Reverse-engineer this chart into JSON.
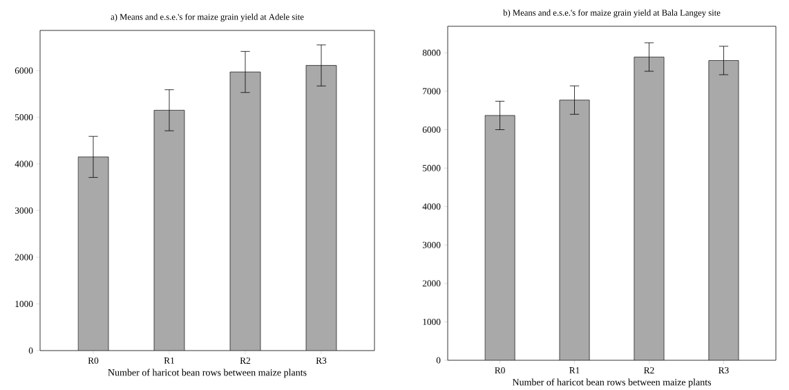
{
  "chart_data": [
    {
      "type": "bar",
      "title": "a) Means and e.s.e.'s for maize grain yield at Adele site",
      "xlabel": "Number of haricot bean rows between maize plants",
      "categories": [
        "R0",
        "R1",
        "R2",
        "R3"
      ],
      "values": [
        4150,
        5150,
        5970,
        6110
      ],
      "errors": [
        440,
        440,
        440,
        440
      ],
      "color": "#a9a9aa",
      "ylim": [
        0,
        6860
      ],
      "yticks": [
        0,
        1000,
        2000,
        3000,
        4000,
        5000,
        6000
      ]
    },
    {
      "type": "bar",
      "title": "b) Means and e.s.e.'s for maize grain yield at Bala Langey site",
      "xlabel": "Number of haricot bean rows between maize plants",
      "categories": [
        "R0",
        "R1",
        "R2",
        "R3"
      ],
      "values": [
        6370,
        6770,
        7890,
        7800
      ],
      "errors": [
        370,
        370,
        370,
        370
      ],
      "color": "#a9a9aa",
      "ylim": [
        0,
        8690
      ],
      "yticks": [
        0,
        1000,
        2000,
        3000,
        4000,
        5000,
        6000,
        7000,
        8000
      ]
    }
  ]
}
